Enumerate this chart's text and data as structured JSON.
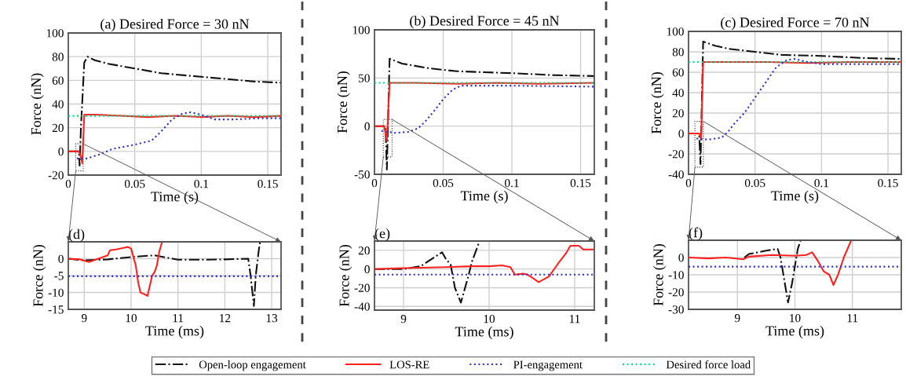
{
  "chart_data": [
    {
      "type": "line",
      "title": "(a) Desired Force = 30 nN",
      "xlabel": "Time (s)",
      "ylabel": "Force (nN)",
      "xlim": [
        0,
        0.16
      ],
      "xticks": [
        0,
        0.05,
        0.1,
        0.15
      ],
      "ylim": [
        -20,
        100
      ],
      "yticks": [
        -20,
        0,
        20,
        40,
        60,
        80,
        100
      ],
      "grid": true,
      "legend": "bottom",
      "series": [
        {
          "name": "Desired force load",
          "color": "#00dd88",
          "line_style": "dotted",
          "x": [
            0,
            0.16
          ],
          "values": [
            30,
            30
          ]
        },
        {
          "name": "Open-loop engagement",
          "color": "#111111",
          "line_style": "dashdot",
          "x": [
            0,
            0.008,
            0.0085,
            0.0095,
            0.012,
            0.0144,
            0.02,
            0.03,
            0.05,
            0.07,
            0.09,
            0.1,
            0.12,
            0.14,
            0.16
          ],
          "values": [
            0,
            0,
            -12,
            20,
            75,
            80,
            77,
            74,
            70,
            66,
            64,
            63,
            61,
            59,
            58
          ]
        },
        {
          "name": "LOS-RE",
          "color": "#ff2020",
          "line_style": "solid",
          "x": [
            0,
            0.008,
            0.0095,
            0.0105,
            0.012,
            0.02,
            0.04,
            0.06,
            0.08,
            0.1,
            0.12,
            0.14,
            0.16
          ],
          "values": [
            0,
            0,
            -5,
            -10,
            31,
            31,
            30,
            29,
            30,
            29,
            30,
            29,
            30
          ]
        },
        {
          "name": "PI-engagement",
          "color": "#3030cc",
          "line_style": "dotted",
          "x": [
            0.0065,
            0.014,
            0.025,
            0.033,
            0.047,
            0.0626,
            0.07,
            0.078,
            0.086,
            0.092,
            0.1,
            0.11,
            0.125,
            0.145,
            0.16
          ],
          "values": [
            -6,
            -6,
            -2,
            2,
            5,
            9,
            17,
            27,
            32,
            33,
            31,
            27,
            27,
            28,
            28
          ]
        }
      ]
    },
    {
      "type": "line",
      "title": "(b) Desired Force = 45 nN",
      "xlabel": "Time (s)",
      "ylabel": "Force (nN)",
      "xlim": [
        0,
        0.16
      ],
      "xticks": [
        0,
        0.05,
        0.1,
        0.15
      ],
      "ylim": [
        -50,
        100
      ],
      "yticks": [
        -50,
        0,
        50,
        100
      ],
      "grid": true,
      "series": [
        {
          "name": "Desired force load",
          "color": "#00dd88",
          "line_style": "dotted",
          "x": [
            0,
            0.16
          ],
          "values": [
            45,
            45
          ]
        },
        {
          "name": "Open-loop engagement",
          "color": "#111111",
          "line_style": "dashdot",
          "x": [
            0,
            0.008,
            0.009,
            0.011,
            0.02,
            0.04,
            0.06,
            0.08,
            0.1,
            0.13,
            0.16
          ],
          "values": [
            0,
            0,
            -45,
            70,
            65,
            60,
            57,
            56,
            55,
            53,
            52
          ]
        },
        {
          "name": "LOS-RE",
          "color": "#ff2020",
          "line_style": "solid",
          "x": [
            0,
            0.007,
            0.009,
            0.011,
            0.03,
            0.06,
            0.09,
            0.12,
            0.16
          ],
          "values": [
            0,
            0,
            -15,
            45,
            45,
            44,
            45,
            44,
            45
          ]
        },
        {
          "name": "PI-engagement",
          "color": "#3030cc",
          "line_style": "dotted",
          "x": [
            0.005,
            0.015,
            0.025,
            0.032,
            0.037,
            0.043,
            0.05,
            0.057,
            0.063,
            0.1,
            0.16
          ],
          "values": [
            -5,
            -7,
            -6,
            -2,
            5,
            15,
            28,
            38,
            42,
            42,
            41
          ]
        }
      ]
    },
    {
      "type": "line",
      "title": "(c) Desired Force = 70 nN",
      "xlabel": "Time (s)",
      "ylabel": "Force (nN)",
      "xlim": [
        0,
        0.16
      ],
      "xticks": [
        0,
        0.05,
        0.1,
        0.15
      ],
      "ylim": [
        -40,
        100
      ],
      "yticks": [
        -40,
        -20,
        0,
        20,
        40,
        60,
        80,
        100
      ],
      "grid": true,
      "series": [
        {
          "name": "Desired force load",
          "color": "#00dd88",
          "line_style": "dotted",
          "x": [
            0,
            0.16
          ],
          "values": [
            70,
            70
          ]
        },
        {
          "name": "Open-loop engagement",
          "color": "#111111",
          "line_style": "dashdot",
          "x": [
            0,
            0.008,
            0.009,
            0.011,
            0.02,
            0.03,
            0.05,
            0.07,
            0.1,
            0.13,
            0.16
          ],
          "values": [
            0,
            0,
            -30,
            90,
            86,
            83,
            80,
            77,
            76,
            74,
            73
          ]
        },
        {
          "name": "LOS-RE",
          "color": "#ff2020",
          "line_style": "solid",
          "x": [
            0,
            0.008,
            0.0095,
            0.011,
            0.03,
            0.06,
            0.09,
            0.12,
            0.16
          ],
          "values": [
            0,
            0,
            -5,
            70,
            70,
            70,
            69,
            70,
            70
          ]
        },
        {
          "name": "PI-engagement",
          "color": "#3030cc",
          "line_style": "dotted",
          "x": [
            0.006,
            0.015,
            0.025,
            0.03,
            0.034,
            0.042,
            0.05,
            0.058,
            0.066,
            0.074,
            0.08,
            0.09,
            0.1,
            0.16
          ],
          "values": [
            -5,
            -6,
            -4,
            2,
            9,
            20,
            35,
            50,
            65,
            72,
            73,
            70,
            68,
            68
          ]
        }
      ]
    },
    {
      "type": "line",
      "title": "(d)",
      "xlabel": "Time (ms)",
      "ylabel": "Force (nN)",
      "xlim": [
        8.66,
        13.2
      ],
      "xticks": [
        9,
        10,
        11,
        12,
        13
      ],
      "ylim": [
        -15,
        5
      ],
      "yticks": [
        -15,
        -10,
        -5,
        0
      ],
      "grid": true,
      "series": [
        {
          "name": "Open-loop engagement",
          "color": "#111111",
          "line_style": "dashdot",
          "x": [
            8.66,
            9,
            9.5,
            10,
            10.5,
            11,
            11.5,
            12,
            12.5,
            12.55,
            12.62,
            12.66,
            12.72,
            12.75
          ],
          "values": [
            0,
            -0.5,
            -0.2,
            0.5,
            1,
            -0.3,
            -0.3,
            -0.2,
            0,
            -5,
            -14,
            -5,
            2,
            5
          ]
        },
        {
          "name": "LOS-RE",
          "color": "#ff2020",
          "line_style": "solid",
          "x": [
            8.66,
            8.9,
            9.1,
            9.3,
            9.5,
            9.55,
            9.7,
            9.93,
            10.0,
            10.1,
            10.15,
            10.2,
            10.28,
            10.35,
            10.4,
            10.45,
            10.5,
            10.55,
            10.6,
            10.66
          ],
          "values": [
            0,
            -0.2,
            -1,
            0,
            1,
            2.5,
            2.8,
            3.5,
            3,
            -2,
            -7,
            -10,
            -10.5,
            -11,
            -8,
            -5,
            -4,
            -2,
            2,
            5
          ]
        },
        {
          "name": "PI-engagement",
          "color": "#3030cc",
          "line_style": "dotted",
          "x": [
            8.66,
            13.2
          ],
          "values": [
            -5.2,
            -5.2
          ]
        }
      ]
    },
    {
      "type": "line",
      "title": "(e)",
      "xlabel": "Time (ms)",
      "ylabel": "Force (nN)",
      "xlim": [
        8.66,
        11.23
      ],
      "xticks": [
        9,
        10,
        11
      ],
      "ylim": [
        -44,
        30
      ],
      "yticks": [
        -40,
        -20,
        0,
        20
      ],
      "grid": true,
      "series": [
        {
          "name": "Open-loop engagement",
          "color": "#111111",
          "line_style": "dashdot",
          "x": [
            8.66,
            9,
            9.2,
            9.45,
            9.5,
            9.55,
            9.6,
            9.67,
            9.75,
            9.8,
            9.88
          ],
          "values": [
            0,
            0,
            3,
            18,
            10,
            5,
            -20,
            -36,
            -10,
            8,
            28
          ]
        },
        {
          "name": "LOS-RE",
          "color": "#ff2020",
          "line_style": "solid",
          "x": [
            8.66,
            9,
            9.5,
            9.8,
            10,
            10.15,
            10.25,
            10.3,
            10.4,
            10.45,
            10.5,
            10.58,
            10.7,
            10.8,
            10.9,
            10.95,
            11.05,
            11.1,
            11.23
          ],
          "values": [
            0,
            1,
            2,
            3,
            3,
            4,
            2,
            -6,
            -5,
            -6,
            -9,
            -14,
            -8,
            5,
            17,
            25,
            25,
            21,
            21
          ]
        },
        {
          "name": "PI-engagement",
          "color": "#3030cc",
          "line_style": "dotted",
          "x": [
            8.66,
            11.23
          ],
          "values": [
            -6,
            -6
          ]
        }
      ]
    },
    {
      "type": "line",
      "title": "(f)",
      "xlabel": "Time (ms)",
      "ylabel": "Force (nN)",
      "xlim": [
        8.15,
        11.85
      ],
      "xticks": [
        9,
        10,
        11
      ],
      "ylim": [
        -30,
        10
      ],
      "yticks": [
        -30,
        -20,
        -10,
        0
      ],
      "grid": true,
      "series": [
        {
          "name": "Open-loop engagement",
          "color": "#111111",
          "line_style": "dashdot",
          "x": [
            9.12,
            9.2,
            9.5,
            9.7,
            9.75,
            9.88,
            9.95,
            10.05,
            10.1
          ],
          "values": [
            0,
            2,
            4,
            5,
            0,
            -26,
            -15,
            5,
            10
          ]
        },
        {
          "name": "LOS-RE",
          "color": "#ff2020",
          "line_style": "solid",
          "x": [
            8.15,
            8.5,
            8.8,
            9.1,
            9.2,
            9.6,
            10,
            10.2,
            10.3,
            10.4,
            10.5,
            10.6,
            10.67,
            10.75,
            10.85,
            10.98
          ],
          "values": [
            0,
            -0.5,
            0,
            -1,
            0.5,
            1.5,
            1,
            1.5,
            3,
            -2,
            -8,
            -10,
            -16,
            -10,
            0,
            10
          ]
        },
        {
          "name": "PI-engagement",
          "color": "#3030cc",
          "line_style": "dotted",
          "x": [
            8.15,
            11.85
          ],
          "values": [
            -5.3,
            -5.3
          ]
        }
      ]
    }
  ]
}
